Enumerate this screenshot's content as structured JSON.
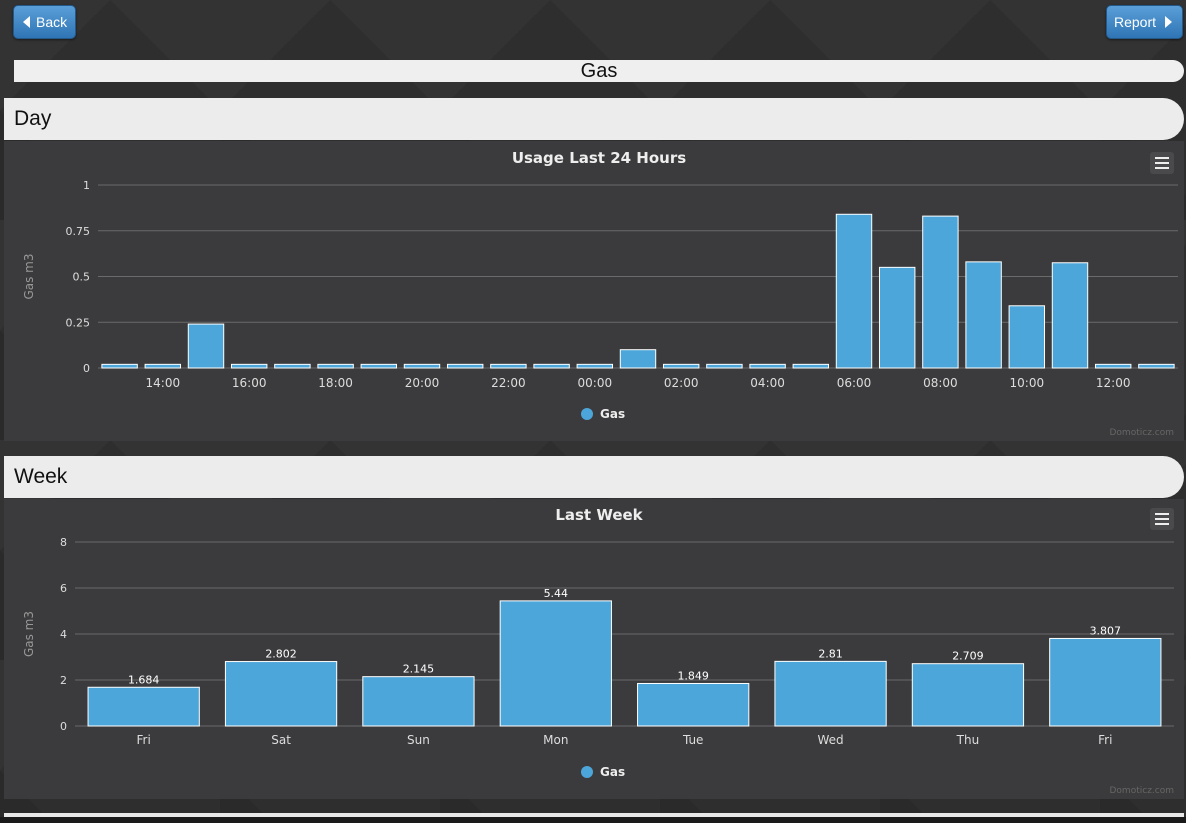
{
  "nav": {
    "back_label": "Back",
    "report_label": "Report"
  },
  "page_title": "Gas",
  "sections": {
    "day_label": "Day",
    "week_label": "Week"
  },
  "watermark": "Domoticz.com",
  "colors": {
    "bar": "#4da6d9",
    "bar_border": "#ffffff",
    "panel": "#3b3b3d",
    "grid": "#6a6a6a"
  },
  "chart_data": [
    {
      "type": "bar",
      "title": "Usage Last 24 Hours",
      "ylabel": "Gas m3",
      "ylim": [
        0,
        1
      ],
      "yticks": [
        "0",
        "0.25",
        "0.5",
        "0.75",
        "1"
      ],
      "ytick_values": [
        0,
        0.25,
        0.5,
        0.75,
        1
      ],
      "x_labels": [
        "14:00",
        "16:00",
        "18:00",
        "20:00",
        "22:00",
        "00:00",
        "02:00",
        "04:00",
        "06:00",
        "08:00",
        "10:00",
        "12:00"
      ],
      "categories": [
        "13:00",
        "14:00",
        "15:00",
        "16:00",
        "17:00",
        "18:00",
        "19:00",
        "20:00",
        "21:00",
        "22:00",
        "23:00",
        "00:00",
        "01:00",
        "02:00",
        "03:00",
        "04:00",
        "05:00",
        "06:00",
        "07:00",
        "08:00",
        "09:00",
        "10:00",
        "11:00",
        "12:00",
        "13:00"
      ],
      "values": [
        0.02,
        0.02,
        0.24,
        0.02,
        0.02,
        0.02,
        0.02,
        0.02,
        0.02,
        0.02,
        0.02,
        0.02,
        0.1,
        0.02,
        0.02,
        0.02,
        0.02,
        0.84,
        0.55,
        0.83,
        0.58,
        0.34,
        0.575,
        0.02,
        0.02
      ],
      "series": [
        {
          "name": "Gas"
        }
      ],
      "legend": "bottom-center",
      "grid": true
    },
    {
      "type": "bar",
      "title": "Last Week",
      "ylabel": "Gas m3",
      "ylim": [
        0,
        8
      ],
      "yticks": [
        "0",
        "2",
        "4",
        "6",
        "8"
      ],
      "ytick_values": [
        0,
        2,
        4,
        6,
        8
      ],
      "categories": [
        "Fri",
        "Sat",
        "Sun",
        "Mon",
        "Tue",
        "Wed",
        "Thu",
        "Fri"
      ],
      "values": [
        1.684,
        2.802,
        2.145,
        5.44,
        1.849,
        2.81,
        2.709,
        3.807
      ],
      "value_labels": [
        "1.684",
        "2.802",
        "2.145",
        "5.44",
        "1.849",
        "2.81",
        "2.709",
        "3.807"
      ],
      "series": [
        {
          "name": "Gas"
        }
      ],
      "legend": "bottom-center",
      "grid": true
    }
  ]
}
